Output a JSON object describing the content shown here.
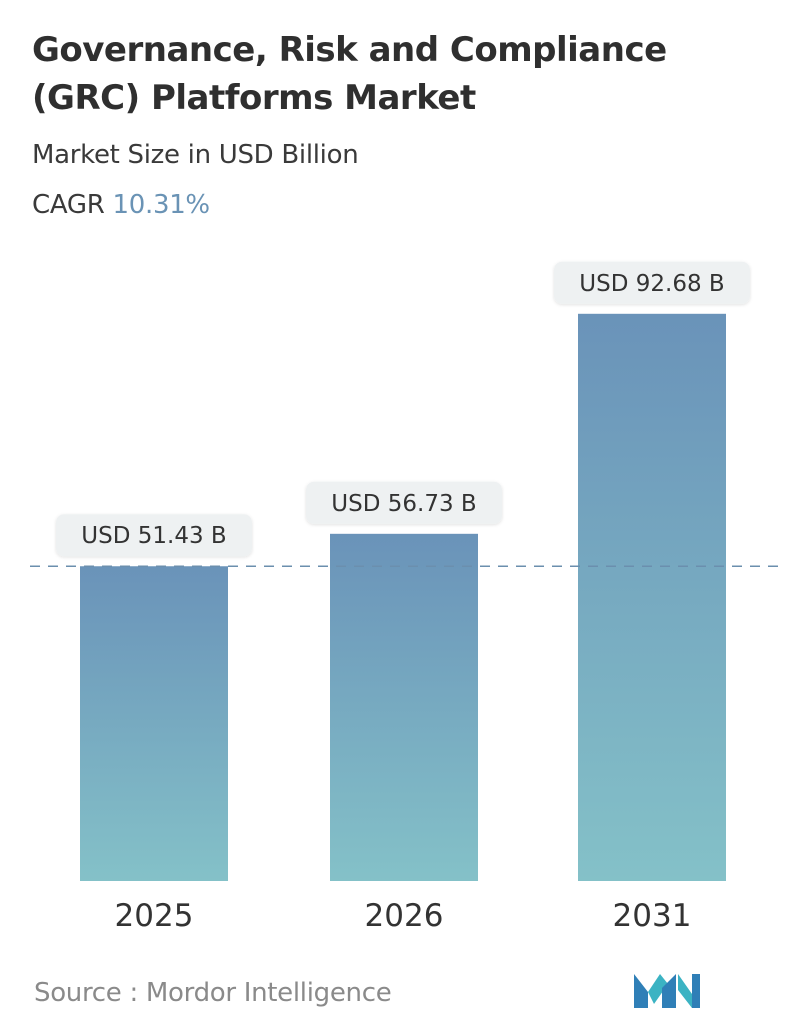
{
  "header": {
    "title": "Governance, Risk and Compliance (GRC) Platforms Market",
    "subtitle": "Market Size in USD Billion",
    "cagr_label": "CAGR",
    "cagr_value": "10.31%"
  },
  "footer": {
    "source_label": "Source :",
    "source_name": "Mordor Intelligence",
    "logo_icon": "mordor-intelligence-logo-icon"
  },
  "colors": {
    "bar_top": "#6a93b9",
    "bar_bottom": "#84c1c8",
    "accent": "#6a93b5",
    "reference_line": "#6b8fae",
    "label_bg": "#eef1f2"
  },
  "chart_data": {
    "type": "bar",
    "categories": [
      "2025",
      "2026",
      "2031"
    ],
    "values": [
      51.43,
      56.73,
      92.68
    ],
    "data_labels": [
      "USD 51.43 B",
      "USD 56.73 B",
      "USD 92.68 B"
    ],
    "unit": "USD Billion",
    "reference_line": 51.43,
    "ylim": [
      0,
      100
    ],
    "grid": false,
    "legend": "none"
  }
}
